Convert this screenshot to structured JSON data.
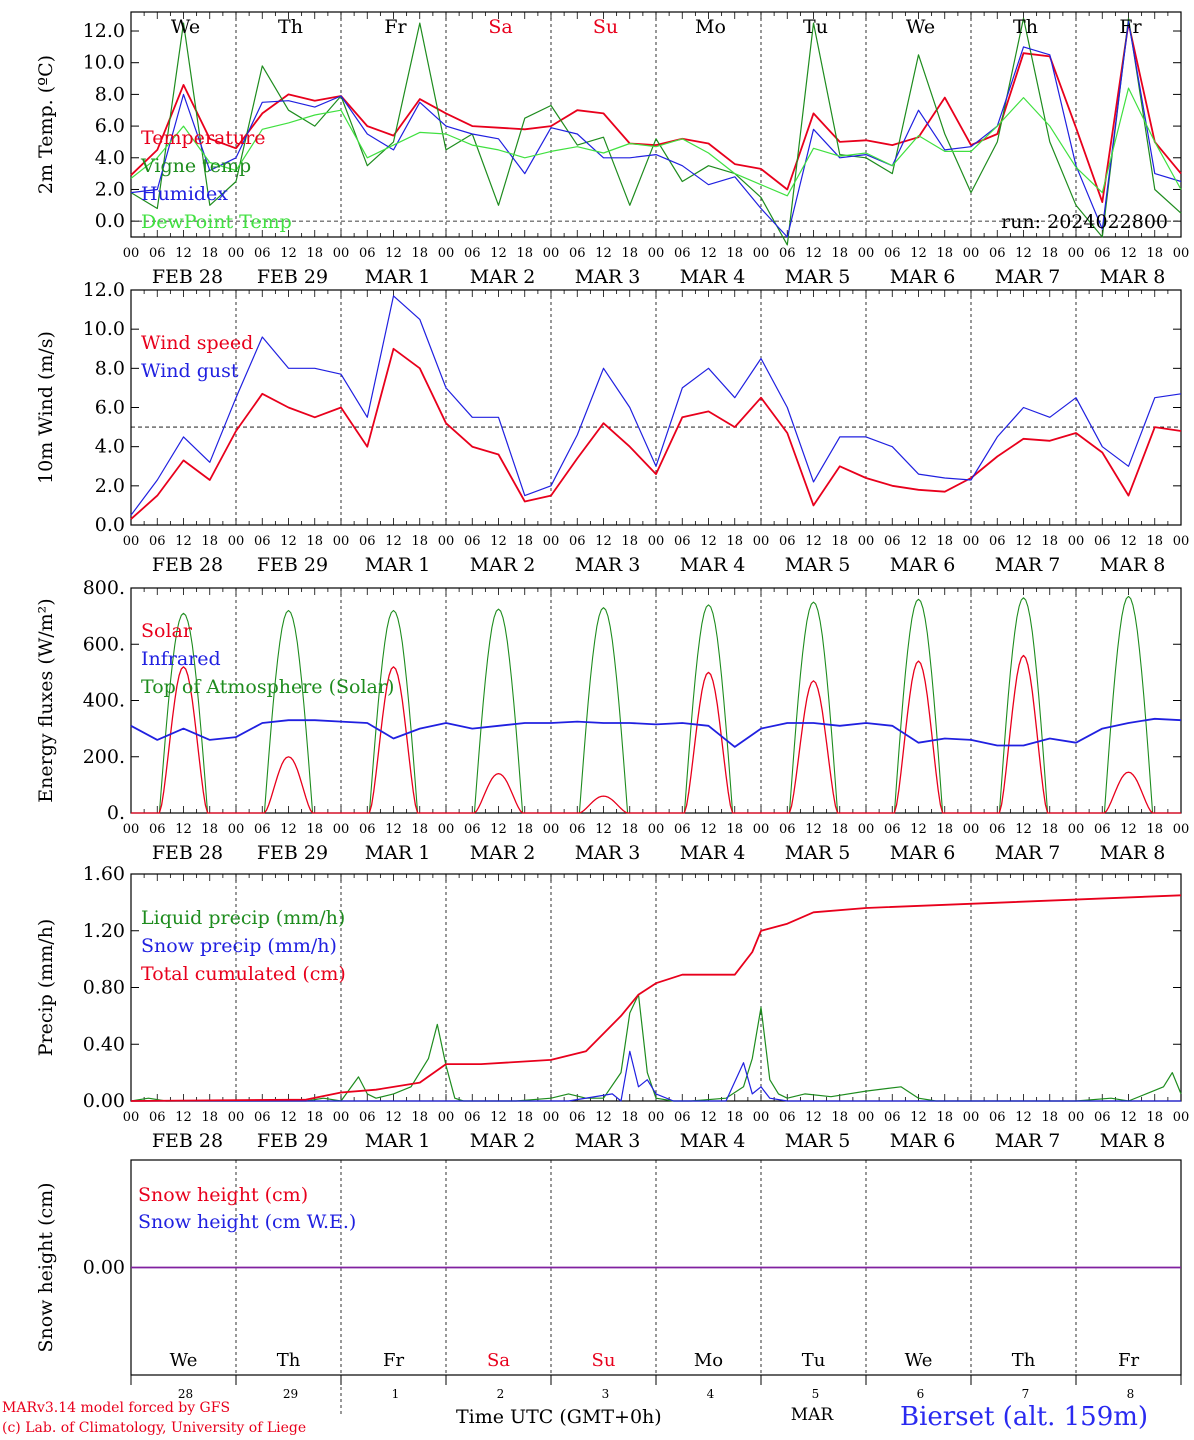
{
  "days": [
    "We",
    "Th",
    "Fr",
    "Sa",
    "Su",
    "Mo",
    "Tu",
    "We",
    "Th",
    "Fr"
  ],
  "weekend_days": [
    "Sa",
    "Su"
  ],
  "dates": [
    "FEB 28",
    "FEB 29",
    "MAR  1",
    "MAR  2",
    "MAR  3",
    "MAR  4",
    "MAR  5",
    "MAR  6",
    "MAR  7",
    "MAR  8"
  ],
  "day_numbers": [
    "28",
    "29",
    "1",
    "2",
    "3",
    "4",
    "5",
    "6",
    "7",
    "8"
  ],
  "month_label": "MAR",
  "hour_ticks": [
    "00",
    "06",
    "12",
    "18"
  ],
  "colors": {
    "red": "#e8001c",
    "green": "#1e8c1e",
    "blue": "#2020e0",
    "lightgreen": "#40e040",
    "purple": "#8020a0"
  },
  "footer": {
    "model": "MARv3.14 model forced by GFS",
    "lab": "(c) Lab. of Climatology, University of Liege",
    "time_label": "Time UTC (GMT+0h)",
    "station": "Bierset (alt. 159m)"
  },
  "chart_data": [
    {
      "type": "line",
      "ylabel": "2m Temp. (ºC)",
      "yticks": [
        "0.0",
        "2.0",
        "4.0",
        "6.0",
        "8.0",
        "10.0",
        "12.0"
      ],
      "ylim": [
        -1.0,
        13.2
      ],
      "refline": 0.0,
      "run_label": "run: 2024022800",
      "x_unit": "hours since FEB 28 00 UTC",
      "x_range": [
        0,
        240
      ],
      "series": [
        {
          "name": "Temperature",
          "color": "red",
          "x": [
            0,
            6,
            12,
            18,
            24,
            30,
            36,
            42,
            48,
            54,
            60,
            66,
            72,
            78,
            84,
            90,
            96,
            102,
            108,
            114,
            120,
            126,
            132,
            138,
            144,
            150,
            156,
            162,
            168,
            174,
            180,
            186,
            192,
            198,
            204,
            210,
            216,
            222,
            228,
            234,
            240
          ],
          "values": [
            2.9,
            4.5,
            8.6,
            5.2,
            4.6,
            6.8,
            8.0,
            7.6,
            7.9,
            6.0,
            5.4,
            7.7,
            6.8,
            6.0,
            5.9,
            5.8,
            6.0,
            7.0,
            6.8,
            4.9,
            4.8,
            5.2,
            4.9,
            3.6,
            3.3,
            2.0,
            6.8,
            5.0,
            5.1,
            4.8,
            5.3,
            7.8,
            4.8,
            5.5,
            10.6,
            10.4,
            5.9,
            1.2,
            12.5,
            5.0,
            3.0
          ]
        },
        {
          "name": "Vigne temp",
          "color": "green",
          "x": [
            0,
            6,
            12,
            18,
            24,
            30,
            36,
            42,
            48,
            54,
            60,
            66,
            72,
            78,
            84,
            90,
            96,
            102,
            108,
            114,
            120,
            126,
            132,
            138,
            144,
            150,
            156,
            162,
            168,
            174,
            180,
            186,
            192,
            198,
            204,
            210,
            216,
            222,
            228,
            234,
            240
          ],
          "values": [
            1.8,
            0.8,
            12.5,
            1.0,
            2.5,
            9.8,
            7.0,
            6.0,
            7.9,
            3.5,
            5.0,
            12.5,
            4.5,
            5.5,
            1.0,
            6.5,
            7.3,
            4.8,
            5.3,
            1.0,
            5.2,
            2.5,
            3.5,
            3.0,
            1.5,
            -1.5,
            12.5,
            4.2,
            4.0,
            3.0,
            10.5,
            5.5,
            1.8,
            5.0,
            12.8,
            5.0,
            1.0,
            -1.0,
            12.8,
            2.0,
            0.5
          ]
        },
        {
          "name": "Humidex",
          "color": "blue",
          "x": [
            0,
            6,
            12,
            18,
            24,
            30,
            36,
            42,
            48,
            54,
            60,
            66,
            72,
            78,
            84,
            90,
            96,
            102,
            108,
            114,
            120,
            126,
            132,
            138,
            144,
            150,
            156,
            162,
            168,
            174,
            180,
            186,
            192,
            198,
            204,
            210,
            216,
            222,
            228,
            234,
            240
          ],
          "values": [
            1.8,
            2.0,
            8.0,
            3.2,
            4.0,
            7.5,
            7.6,
            7.2,
            7.9,
            5.5,
            4.5,
            7.5,
            6.0,
            5.5,
            5.2,
            3.0,
            5.9,
            5.5,
            4.0,
            4.0,
            4.2,
            3.5,
            2.3,
            2.8,
            0.8,
            -1.0,
            5.8,
            4.0,
            4.2,
            3.5,
            7.0,
            4.5,
            4.7,
            6.0,
            11.0,
            10.5,
            3.5,
            -0.5,
            12.6,
            3.0,
            2.5
          ]
        },
        {
          "name": "DewPoint Temp",
          "color": "lightgreen",
          "x": [
            0,
            6,
            12,
            18,
            24,
            30,
            36,
            42,
            48,
            54,
            60,
            66,
            72,
            78,
            84,
            90,
            96,
            102,
            108,
            114,
            120,
            126,
            132,
            138,
            144,
            150,
            156,
            162,
            168,
            174,
            180,
            186,
            192,
            198,
            204,
            210,
            216,
            222,
            228,
            234,
            240
          ],
          "values": [
            2.7,
            4.0,
            6.0,
            3.7,
            3.2,
            5.8,
            6.2,
            6.7,
            7.0,
            4.0,
            4.8,
            5.6,
            5.5,
            4.8,
            4.5,
            4.0,
            4.4,
            4.7,
            4.3,
            4.9,
            4.7,
            5.2,
            4.3,
            3.0,
            2.3,
            1.6,
            4.6,
            4.1,
            4.3,
            3.5,
            5.4,
            4.4,
            4.4,
            6.0,
            7.8,
            6.0,
            3.4,
            1.8,
            8.4,
            5.0,
            2.0
          ]
        }
      ],
      "legend": [
        "Temperature",
        "Vigne temp",
        "Humidex",
        "DewPoint Temp"
      ]
    },
    {
      "type": "line",
      "ylabel": "10m Wind (m/s)",
      "yticks": [
        "0.0",
        "2.0",
        "4.0",
        "6.0",
        "8.0",
        "10.0",
        "12.0"
      ],
      "ylim": [
        0,
        12.0
      ],
      "refline": 5.0,
      "x_unit": "hours since FEB 28 00 UTC",
      "x_range": [
        0,
        240
      ],
      "series": [
        {
          "name": "Wind speed",
          "color": "red",
          "x": [
            0,
            6,
            12,
            18,
            24,
            30,
            36,
            42,
            48,
            54,
            60,
            66,
            72,
            78,
            84,
            90,
            96,
            102,
            108,
            114,
            120,
            126,
            132,
            138,
            144,
            150,
            156,
            162,
            168,
            174,
            180,
            186,
            192,
            198,
            204,
            210,
            216,
            222,
            228,
            234,
            240
          ],
          "values": [
            0.3,
            1.5,
            3.3,
            2.3,
            4.8,
            6.7,
            6.0,
            5.5,
            6.0,
            4.0,
            9.0,
            8.0,
            5.2,
            4.0,
            3.6,
            1.2,
            1.5,
            3.4,
            5.2,
            4.0,
            2.6,
            5.5,
            5.8,
            5.0,
            6.5,
            4.7,
            1.0,
            3.0,
            2.4,
            2.0,
            1.8,
            1.7,
            2.4,
            3.5,
            4.4,
            4.3,
            4.7,
            3.7,
            1.5,
            5.0,
            4.8
          ]
        },
        {
          "name": "Wind gust",
          "color": "blue",
          "x": [
            0,
            6,
            12,
            18,
            24,
            30,
            36,
            42,
            48,
            54,
            60,
            66,
            72,
            78,
            84,
            90,
            96,
            102,
            108,
            114,
            120,
            126,
            132,
            138,
            144,
            150,
            156,
            162,
            168,
            174,
            180,
            186,
            192,
            198,
            204,
            210,
            216,
            222,
            228,
            234,
            240
          ],
          "values": [
            0.5,
            2.3,
            4.5,
            3.2,
            6.5,
            9.6,
            8.0,
            8.0,
            7.7,
            5.5,
            11.7,
            10.5,
            7.0,
            5.5,
            5.5,
            1.5,
            2.0,
            4.6,
            8.0,
            6.0,
            3.0,
            7.0,
            8.0,
            6.5,
            8.5,
            6.0,
            2.2,
            4.5,
            4.5,
            4.0,
            2.6,
            2.4,
            2.3,
            4.5,
            6.0,
            5.5,
            6.5,
            4.0,
            3.0,
            6.5,
            6.7
          ]
        }
      ],
      "legend": [
        "Wind speed",
        "Wind gust"
      ]
    },
    {
      "type": "line",
      "ylabel": "Energy fluxes (W/m²)",
      "yticks": [
        "0.",
        "200.",
        "400.",
        "600.",
        "800."
      ],
      "ylim": [
        0,
        800
      ],
      "x_unit": "hours since FEB 28 00 UTC",
      "x_range": [
        0,
        240
      ],
      "toa_peaks": [
        710,
        720,
        720,
        725,
        730,
        740,
        750,
        760,
        765,
        770
      ],
      "solar_peaks": [
        520,
        200,
        520,
        140,
        60,
        500,
        470,
        540,
        560,
        145
      ],
      "infrared": {
        "x": [
          0,
          6,
          12,
          18,
          24,
          30,
          36,
          42,
          48,
          54,
          60,
          66,
          72,
          78,
          84,
          90,
          96,
          102,
          108,
          114,
          120,
          126,
          132,
          138,
          144,
          150,
          156,
          162,
          168,
          174,
          180,
          186,
          192,
          198,
          204,
          210,
          216,
          222,
          228,
          234,
          240
        ],
        "values": [
          310,
          260,
          300,
          260,
          270,
          320,
          330,
          330,
          325,
          320,
          265,
          300,
          320,
          300,
          310,
          320,
          320,
          325,
          320,
          320,
          315,
          320,
          310,
          235,
          300,
          320,
          320,
          310,
          320,
          310,
          250,
          265,
          260,
          240,
          240,
          265,
          250,
          300,
          320,
          335,
          330
        ]
      },
      "series_names": [
        "Solar",
        "Infrared",
        "Top of Atmosphere (Solar)"
      ],
      "legend": [
        "Solar",
        "Infrared",
        "Top of Atmosphere (Solar)"
      ]
    },
    {
      "type": "line",
      "ylabel": "Precip (mm/h)",
      "yticks": [
        "0.00",
        "0.40",
        "0.80",
        "1.20",
        "1.60"
      ],
      "ylim": [
        0,
        1.6
      ],
      "x_unit": "hours since FEB 28 00 UTC",
      "x_range": [
        0,
        240
      ],
      "series": [
        {
          "name": "Liquid precip (mm/h)",
          "color": "green",
          "x": [
            0,
            4,
            8,
            40,
            44,
            48,
            52,
            54,
            56,
            60,
            64,
            68,
            70,
            72,
            74,
            76,
            78,
            80,
            82,
            84,
            88,
            96,
            100,
            104,
            108,
            112,
            114,
            116,
            118,
            120,
            124,
            128,
            136,
            140,
            142,
            144,
            146,
            148,
            150,
            154,
            160,
            168,
            176,
            180,
            184,
            192,
            216,
            224,
            228,
            232,
            236,
            238,
            240
          ],
          "values": [
            0,
            0.02,
            0,
            0,
            0.02,
            0,
            0.17,
            0.05,
            0.02,
            0.05,
            0.1,
            0.3,
            0.54,
            0.25,
            0.02,
            0,
            0,
            0,
            0,
            0,
            0,
            0.02,
            0.05,
            0.02,
            0.02,
            0.2,
            0.62,
            0.75,
            0.2,
            0.02,
            0,
            0,
            0.02,
            0.1,
            0.3,
            0.66,
            0.15,
            0.05,
            0.02,
            0.05,
            0.03,
            0.07,
            0.1,
            0.02,
            0,
            0,
            0,
            0.02,
            0,
            0.05,
            0.1,
            0.2,
            0.05
          ]
        },
        {
          "name": "Snow precip (mm/h)",
          "color": "blue",
          "x": [
            0,
            100,
            110,
            112,
            114,
            116,
            118,
            120,
            124,
            130,
            136,
            140,
            142,
            144,
            146,
            150,
            160,
            240
          ],
          "values": [
            0,
            0,
            0.05,
            0,
            0.35,
            0.1,
            0.15,
            0.05,
            0,
            0,
            0,
            0.27,
            0.05,
            0.1,
            0.02,
            0,
            0,
            0
          ]
        },
        {
          "name": "Total cumulated (cm)",
          "color": "red",
          "x": [
            0,
            40,
            48,
            56,
            66,
            72,
            80,
            96,
            104,
            112,
            116,
            120,
            126,
            132,
            138,
            142,
            144,
            150,
            156,
            168,
            240
          ],
          "values": [
            0.0,
            0.01,
            0.06,
            0.08,
            0.13,
            0.26,
            0.26,
            0.29,
            0.35,
            0.6,
            0.75,
            0.83,
            0.89,
            0.89,
            0.89,
            1.05,
            1.2,
            1.25,
            1.33,
            1.36,
            1.45
          ]
        }
      ],
      "legend": [
        "Liquid precip (mm/h)",
        "Snow precip (mm/h)",
        "Total cumulated (cm)"
      ]
    },
    {
      "type": "line",
      "ylabel": "Snow height (cm)",
      "yticks": [
        "0.00"
      ],
      "ylim": [
        -1,
        1
      ],
      "x_unit": "hours since FEB 28 00 UTC",
      "x_range": [
        0,
        240
      ],
      "series": [
        {
          "name": "Snow height (cm)",
          "color": "red",
          "x": [
            0,
            240
          ],
          "values": [
            0,
            0
          ]
        },
        {
          "name": "Snow height (cm W.E.)",
          "color": "blue",
          "x": [
            0,
            240
          ],
          "values": [
            0,
            0
          ]
        }
      ],
      "legend": [
        "Snow height (cm)",
        "Snow height (cm W.E.)"
      ]
    }
  ]
}
